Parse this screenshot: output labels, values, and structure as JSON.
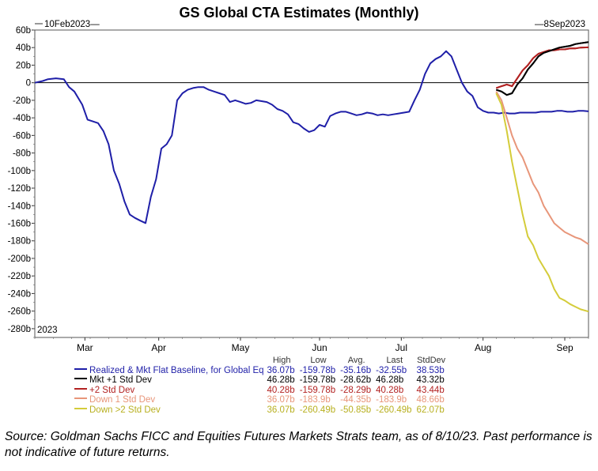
{
  "chart_data": {
    "type": "line",
    "title": "GS Global CTA Estimates (Monthly)",
    "start_label": "10Feb2023",
    "end_label": "8Sep2023",
    "year_label": "2023",
    "ylim": [
      -290,
      60
    ],
    "y_ticks": [
      60,
      40,
      20,
      0,
      -20,
      -40,
      -60,
      -80,
      -100,
      -120,
      -140,
      -160,
      -180,
      -200,
      -220,
      -240,
      -260,
      -280
    ],
    "y_tick_labels": [
      "60b",
      "40b",
      "20b",
      "0",
      "-20b",
      "-40b",
      "-60b",
      "-80b",
      "-100b",
      "-120b",
      "-140b",
      "-160b",
      "-180b",
      "-200b",
      "-220b",
      "-240b",
      "-260b",
      "-280b"
    ],
    "x_label_positions": [
      19,
      47,
      78,
      108,
      139,
      170,
      201
    ],
    "x_labels": [
      "Mar",
      "Apr",
      "May",
      "Jun",
      "Jul",
      "Aug",
      "Sep"
    ],
    "xlim": [
      0,
      210
    ],
    "series": [
      {
        "name": "Realized & Mkt Flat Baseline, for Global Eq",
        "color": "#1f1fa8",
        "x": [
          0,
          3,
          5,
          8,
          11,
          13,
          15,
          18,
          20,
          22,
          24,
          26,
          28,
          30,
          32,
          34,
          36,
          38,
          40,
          42,
          44,
          46,
          48,
          50,
          52,
          54,
          56,
          58,
          60,
          62,
          64,
          66,
          68,
          70,
          72,
          74,
          76,
          78,
          80,
          82,
          84,
          86,
          88,
          90,
          92,
          94,
          96,
          98,
          100,
          102,
          104,
          106,
          108,
          110,
          112,
          114,
          116,
          118,
          120,
          122,
          124,
          126,
          128,
          130,
          132,
          134,
          136,
          138,
          140,
          142,
          144,
          146,
          148,
          150,
          152,
          154,
          156,
          158,
          160,
          162,
          164,
          166,
          168,
          170,
          172,
          174,
          176,
          178,
          180,
          182,
          184,
          186,
          188,
          190,
          192,
          194,
          196,
          198,
          200,
          202,
          204,
          206,
          208,
          210
        ],
        "y": [
          0,
          2,
          4,
          5,
          4,
          -5,
          -10,
          -25,
          -42,
          -44,
          -46,
          -55,
          -70,
          -100,
          -115,
          -135,
          -150,
          -154,
          -157,
          -159.78,
          -130,
          -110,
          -75,
          -70,
          -60,
          -20,
          -12,
          -8,
          -6,
          -5,
          -5,
          -8,
          -10,
          -12,
          -14,
          -22,
          -20,
          -22,
          -24,
          -23,
          -20,
          -21,
          -22,
          -25,
          -30,
          -32,
          -36,
          -45,
          -47,
          -52,
          -56,
          -54,
          -48,
          -50,
          -38,
          -35,
          -33,
          -33,
          -35,
          -37,
          -36,
          -34,
          -35,
          -37,
          -36,
          -37,
          -36,
          -35,
          -34,
          -33,
          -20,
          -8,
          10,
          22,
          27,
          30,
          36,
          30,
          15,
          0,
          -10,
          -15,
          -28,
          -32,
          -34,
          -34,
          -35,
          -34,
          -35,
          -35,
          -34,
          -34,
          -34,
          -34,
          -33,
          -33,
          -33,
          -32,
          -32,
          -33,
          -33,
          -32,
          -32,
          -32.55
        ]
      },
      {
        "name": "Mkt +1 Std Dev",
        "color": "#000000",
        "x": [
          175,
          177,
          179,
          181,
          183,
          185,
          187,
          189,
          191,
          193,
          195,
          197,
          199,
          201,
          203,
          205,
          207,
          210
        ],
        "y": [
          -8,
          -10,
          -14,
          -12,
          -2,
          5,
          15,
          22,
          30,
          34,
          36,
          38,
          40,
          41,
          42,
          44,
          45,
          46.28
        ]
      },
      {
        "name": "+2 Std Dev",
        "color": "#b22222",
        "x": [
          175,
          177,
          179,
          181,
          183,
          185,
          187,
          189,
          191,
          193,
          195,
          197,
          199,
          201,
          203,
          205,
          207,
          210
        ],
        "y": [
          -6,
          -4,
          -2,
          -4,
          5,
          14,
          20,
          28,
          33,
          35,
          37,
          37,
          38,
          38,
          39,
          39,
          40,
          40.28
        ]
      },
      {
        "name": "Down 1 Std Dev",
        "color": "#e8967a",
        "x": [
          175,
          177,
          179,
          181,
          183,
          185,
          187,
          189,
          191,
          193,
          195,
          197,
          199,
          201,
          203,
          205,
          207,
          210
        ],
        "y": [
          -10,
          -20,
          -40,
          -60,
          -75,
          -85,
          -100,
          -115,
          -125,
          -140,
          -150,
          -160,
          -165,
          -170,
          -173,
          -176,
          -178,
          -183.9
        ]
      },
      {
        "name": "Down >2 Std Dev",
        "color": "#d4cc3a",
        "x": [
          175,
          177,
          179,
          181,
          183,
          185,
          187,
          189,
          191,
          193,
          195,
          197,
          199,
          201,
          203,
          205,
          207,
          210
        ],
        "y": [
          -12,
          -25,
          -55,
          -90,
          -120,
          -150,
          -175,
          -185,
          -200,
          -210,
          -220,
          -235,
          -245,
          -248,
          -252,
          -255,
          -258,
          -260.49
        ]
      }
    ],
    "stats_headers": [
      "High",
      "Low",
      "Avg.",
      "Last",
      "StdDev"
    ],
    "stats": [
      [
        "36.07b",
        "-159.78b",
        "-35.16b",
        "-32.55b",
        "38.53b"
      ],
      [
        "46.28b",
        "-159.78b",
        "-28.62b",
        "46.28b",
        "43.32b"
      ],
      [
        "40.28b",
        "-159.78b",
        "-28.29b",
        "40.28b",
        "43.44b"
      ],
      [
        "36.07b",
        "-183.9b",
        "-44.35b",
        "-183.9b",
        "48.66b"
      ],
      [
        "36.07b",
        "-260.49b",
        "-50.85b",
        "-260.49b",
        "62.07b"
      ]
    ]
  },
  "footer": {
    "source_text": "Source: Goldman Sachs FICC and Equities Futures Markets Strats team, as of 8/10/23. Past performance is not indicative of future returns."
  }
}
